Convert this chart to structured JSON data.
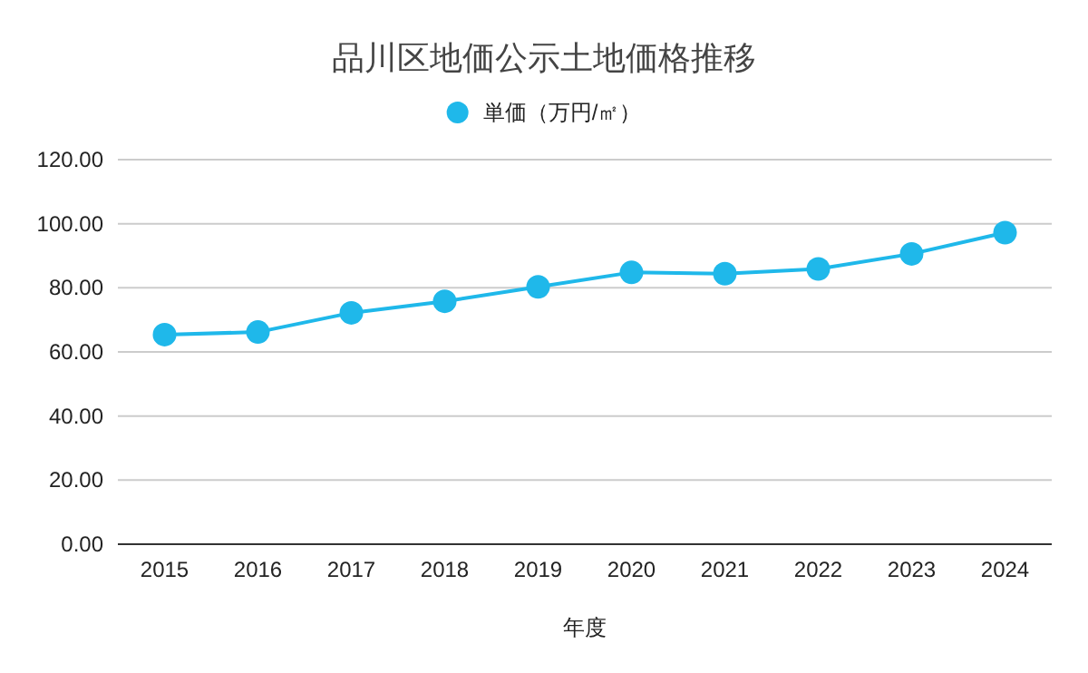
{
  "chart_data": {
    "type": "line",
    "title": "品川区地価公示土地価格推移",
    "xlabel": "年度",
    "categories": [
      "2015",
      "2016",
      "2017",
      "2018",
      "2019",
      "2020",
      "2021",
      "2022",
      "2023",
      "2024"
    ],
    "series": [
      {
        "name": "単価（万円/㎡）",
        "color": "#1fb8ea",
        "values": [
          65.4,
          66.2,
          72.2,
          75.8,
          80.3,
          84.8,
          84.4,
          85.9,
          90.6,
          97.2
        ]
      }
    ],
    "ylim": [
      0,
      120
    ],
    "yticks": [
      {
        "value": 0,
        "label": "0.00"
      },
      {
        "value": 20,
        "label": "20.00"
      },
      {
        "value": 40,
        "label": "40.00"
      },
      {
        "value": 60,
        "label": "60.00"
      },
      {
        "value": 80,
        "label": "80.00"
      },
      {
        "value": 100,
        "label": "100.00"
      },
      {
        "value": 120,
        "label": "120.00"
      }
    ],
    "grid": "y",
    "legend": "top",
    "marker": "circle",
    "line_style": "solid"
  }
}
